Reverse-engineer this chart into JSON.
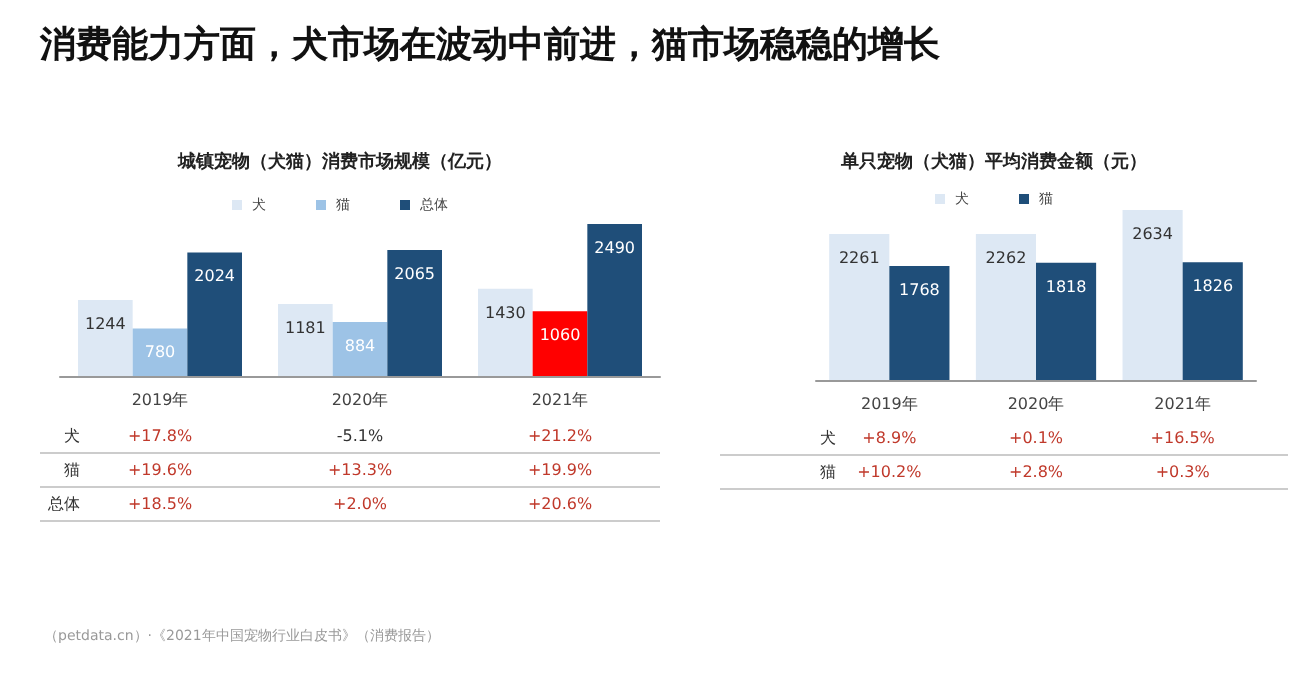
{
  "chart_data": [
    {
      "type": "bar",
      "title": "消费能力方面，犬市场在波动中前进，猫市场稳稳的增长",
      "subtitle": "城镇宠物（犬猫）消费市场规模（亿元）",
      "categories": [
        "2019年",
        "2020年",
        "2021年"
      ],
      "series": [
        {
          "name": "犬",
          "color": "#dde8f4",
          "values": [
            1244,
            1181,
            1430
          ]
        },
        {
          "name": "猫",
          "color": "#9dc3e6",
          "colors": [
            "#9dc3e6",
            "#9dc3e6",
            "#ff0000"
          ],
          "values": [
            780,
            884,
            1060
          ]
        },
        {
          "name": "总体",
          "color": "#1f4e79",
          "values": [
            2024,
            2065,
            2490
          ]
        }
      ],
      "data_labels": true,
      "legend": "top",
      "annotations": [
        "+17.8%",
        "-5.1%",
        "+21.2%",
        "+19.6%",
        "+13.3%",
        "+19.9%",
        "+18.5%",
        "+2.0%",
        "+20.6%",
        "（petdata.cn）·《2021年中国宠物行业白皮书》（消费报告）"
      ]
    },
    {
      "type": "bar",
      "title": "单只宠物（犬猫）平均消费金额（元）",
      "categories": [
        "2019年",
        "2020年",
        "2021年"
      ],
      "series": [
        {
          "name": "犬",
          "color": "#dde8f4",
          "values": [
            2261,
            2262,
            2634
          ]
        },
        {
          "name": "猫",
          "color": "#1f4e79",
          "values": [
            1768,
            1818,
            1826
          ]
        }
      ],
      "data_labels": true,
      "legend": "top",
      "annotations": [
        "+8.9%",
        "+0.1%",
        "+16.5%",
        "+10.2%",
        "+2.8%",
        "+0.3%"
      ]
    }
  ]
}
